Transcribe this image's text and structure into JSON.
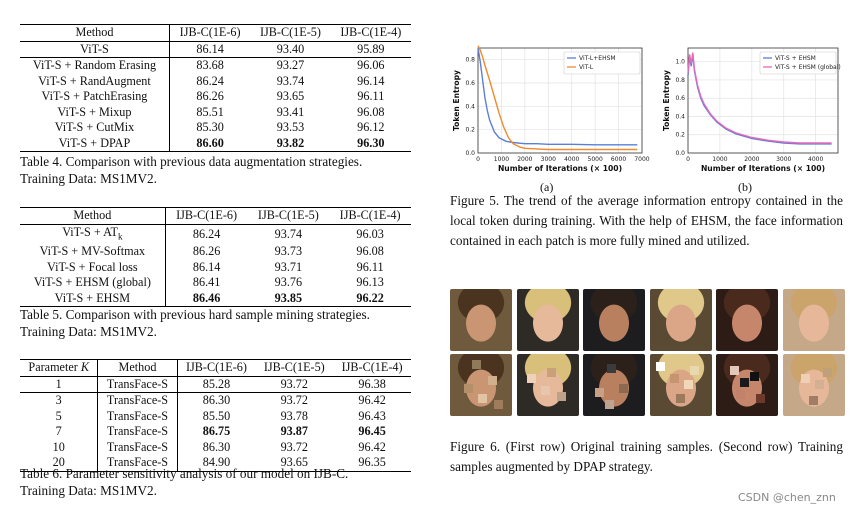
{
  "table4": {
    "headers": [
      "Method",
      "IJB-C(1E-6)",
      "IJB-C(1E-5)",
      "IJB-C(1E-4)"
    ],
    "rows": [
      [
        "ViT-S",
        "86.14",
        "93.40",
        "95.89"
      ],
      [
        "ViT-S + Random Erasing",
        "83.68",
        "93.27",
        "96.06"
      ],
      [
        "ViT-S + RandAugment",
        "86.24",
        "93.74",
        "96.14"
      ],
      [
        "ViT-S + PatchErasing",
        "86.26",
        "93.65",
        "96.11"
      ],
      [
        "ViT-S + Mixup",
        "85.51",
        "93.41",
        "96.08"
      ],
      [
        "ViT-S + CutMix",
        "85.30",
        "93.53",
        "96.12"
      ],
      [
        "ViT-S + DPAP",
        "86.60",
        "93.82",
        "96.30"
      ]
    ],
    "caption_line1": "Table 4. Comparison with previous data augmentation strategies.",
    "caption_line2": "Training Data: MS1MV2."
  },
  "table5": {
    "headers": [
      "Method",
      "IJB-C(1E-6)",
      "IJB-C(1E-5)",
      "IJB-C(1E-4)"
    ],
    "rows": [
      [
        "ViT-S + AT",
        "86.24",
        "93.74",
        "96.03"
      ],
      [
        "ViT-S + MV-Softmax",
        "86.26",
        "93.73",
        "96.08"
      ],
      [
        "ViT-S + Focal loss",
        "86.14",
        "93.71",
        "96.11"
      ],
      [
        "ViT-S + EHSM (global)",
        "86.41",
        "93.76",
        "96.13"
      ],
      [
        "ViT-S + EHSM",
        "86.46",
        "93.85",
        "96.22"
      ]
    ],
    "at_subscript": "k",
    "caption_line1": "Table 5. Comparison with previous hard sample mining strategies.",
    "caption_line2": "Training Data: MS1MV2."
  },
  "table6": {
    "headers": [
      "Parameter K",
      "Method",
      "IJB-C(1E-6)",
      "IJB-C(1E-5)",
      "IJB-C(1E-4)"
    ],
    "rows": [
      [
        "1",
        "TransFace-S",
        "85.28",
        "93.72",
        "96.38"
      ],
      [
        "3",
        "TransFace-S",
        "86.30",
        "93.72",
        "96.42"
      ],
      [
        "5",
        "TransFace-S",
        "85.50",
        "93.78",
        "96.43"
      ],
      [
        "7",
        "TransFace-S",
        "86.75",
        "93.87",
        "96.45"
      ],
      [
        "10",
        "TransFace-S",
        "86.30",
        "93.72",
        "96.42"
      ],
      [
        "20",
        "TransFace-S",
        "84.90",
        "93.65",
        "96.35"
      ]
    ],
    "caption_line1": "Table 6. Parameter sensitivity analysis of our model on IJB-C.",
    "caption_line2": "Training Data: MS1MV2."
  },
  "chart_data": [
    {
      "type": "line",
      "panel_label": "(a)",
      "xlabel": "Number of Iterations (× 100)",
      "ylabel": "Token Entropy",
      "xlim": [
        0,
        7000
      ],
      "ylim": [
        0,
        0.9
      ],
      "x_ticks": [
        "0",
        "1000",
        "2000",
        "3000",
        "4000",
        "5000",
        "6000",
        "7000"
      ],
      "y_ticks": [
        "0.0",
        "0.2",
        "0.4",
        "0.6",
        "0.8"
      ],
      "grid": true,
      "legend_position": "top-right",
      "series": [
        {
          "name": "ViT-L+EHSM",
          "color": "#5b7fd6",
          "x": [
            0,
            100,
            200,
            300,
            400,
            500,
            700,
            900,
            1200,
            1500,
            2000,
            2500,
            3000,
            4000,
            5000,
            6000,
            6800
          ],
          "y": [
            0.9,
            0.78,
            0.62,
            0.47,
            0.36,
            0.28,
            0.18,
            0.13,
            0.1,
            0.09,
            0.08,
            0.08,
            0.075,
            0.075,
            0.07,
            0.07,
            0.07
          ]
        },
        {
          "name": "ViT-L",
          "color": "#f08a2c",
          "x": [
            0,
            100,
            200,
            300,
            500,
            700,
            900,
            1100,
            1300,
            1500,
            1800,
            2000,
            2500,
            3000,
            4000,
            5000,
            6000,
            6800
          ],
          "y": [
            0.92,
            0.88,
            0.82,
            0.75,
            0.62,
            0.48,
            0.34,
            0.22,
            0.13,
            0.08,
            0.05,
            0.04,
            0.035,
            0.03,
            0.03,
            0.03,
            0.03,
            0.03
          ]
        }
      ]
    },
    {
      "type": "line",
      "panel_label": "(b)",
      "xlabel": "Number of Iterations (× 100)",
      "ylabel": "Token Entropy",
      "xlim": [
        0,
        4700
      ],
      "ylim": [
        0,
        1.15
      ],
      "x_ticks": [
        "0",
        "1000",
        "2000",
        "3000",
        "4000"
      ],
      "y_ticks": [
        "0.0",
        "0.2",
        "0.4",
        "0.6",
        "0.8",
        "1.0"
      ],
      "grid": true,
      "legend_position": "top-right",
      "series": [
        {
          "name": "ViT-S + EHSM",
          "color": "#5b7fd6",
          "x": [
            0,
            50,
            100,
            150,
            200,
            300,
            400,
            500,
            700,
            900,
            1200,
            1500,
            2000,
            2500,
            3000,
            3500,
            4000,
            4500
          ],
          "y": [
            0.85,
            1.05,
            0.95,
            1.08,
            0.9,
            0.72,
            0.6,
            0.52,
            0.42,
            0.34,
            0.26,
            0.21,
            0.16,
            0.13,
            0.11,
            0.1,
            0.1,
            0.1
          ]
        },
        {
          "name": "ViT-S + EHSM (global)",
          "color": "#e86ab8",
          "x": [
            0,
            50,
            100,
            150,
            200,
            300,
            400,
            500,
            700,
            900,
            1200,
            1500,
            2000,
            2500,
            3000,
            3500,
            4000,
            4500
          ],
          "y": [
            0.88,
            1.08,
            0.98,
            1.1,
            0.92,
            0.74,
            0.62,
            0.54,
            0.43,
            0.35,
            0.27,
            0.22,
            0.17,
            0.14,
            0.12,
            0.11,
            0.11,
            0.11
          ]
        }
      ]
    }
  ],
  "figure5_caption": "Figure 5. The trend of the average information entropy contained in the local token during training. With the help of EHSM, the face information contained in each patch is more fully mined and utilized.",
  "figure6_caption": "Figure 6. (First row) Original training samples. (Second row) Training samples augmented by DPAP strategy.",
  "watermark": "CSDN @chen_znn"
}
